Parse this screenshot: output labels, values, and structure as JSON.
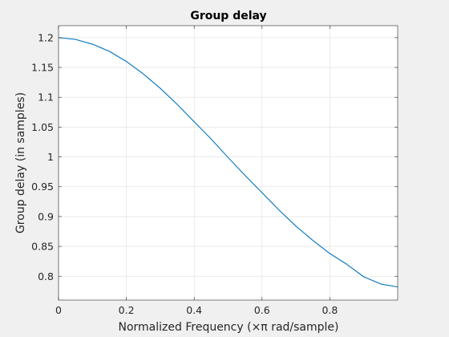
{
  "chart_data": {
    "type": "line",
    "title": "Group delay",
    "xlabel": "Normalized Frequency (×π rad/sample)",
    "ylabel": "Group delay (in samples)",
    "xlim": [
      0,
      1
    ],
    "ylim": [
      0.76,
      1.22
    ],
    "xticks": [
      0,
      0.2,
      0.4,
      0.6,
      0.8
    ],
    "xtick_labels": [
      "0",
      "0.2",
      "0.4",
      "0.6",
      "0.8"
    ],
    "yticks": [
      0.8,
      0.85,
      0.9,
      0.95,
      1,
      1.05,
      1.1,
      1.15,
      1.2
    ],
    "ytick_labels": [
      "0.8",
      "0.85",
      "0.9",
      "0.95",
      "1",
      "1.05",
      "1.1",
      "1.15",
      "1.2"
    ],
    "grid": true,
    "series": [
      {
        "color": "#0072bd",
        "x": [
          0,
          0.05,
          0.1,
          0.15,
          0.2,
          0.25,
          0.3,
          0.35,
          0.4,
          0.45,
          0.5,
          0.55,
          0.6,
          0.65,
          0.7,
          0.75,
          0.8,
          0.85,
          0.9,
          0.95,
          1.0
        ],
        "y": [
          1.2,
          1.197,
          1.189,
          1.177,
          1.16,
          1.139,
          1.115,
          1.088,
          1.059,
          1.03,
          0.999,
          0.969,
          0.94,
          0.911,
          0.884,
          0.86,
          0.838,
          0.82,
          0.799,
          0.787,
          0.782
        ]
      }
    ]
  }
}
